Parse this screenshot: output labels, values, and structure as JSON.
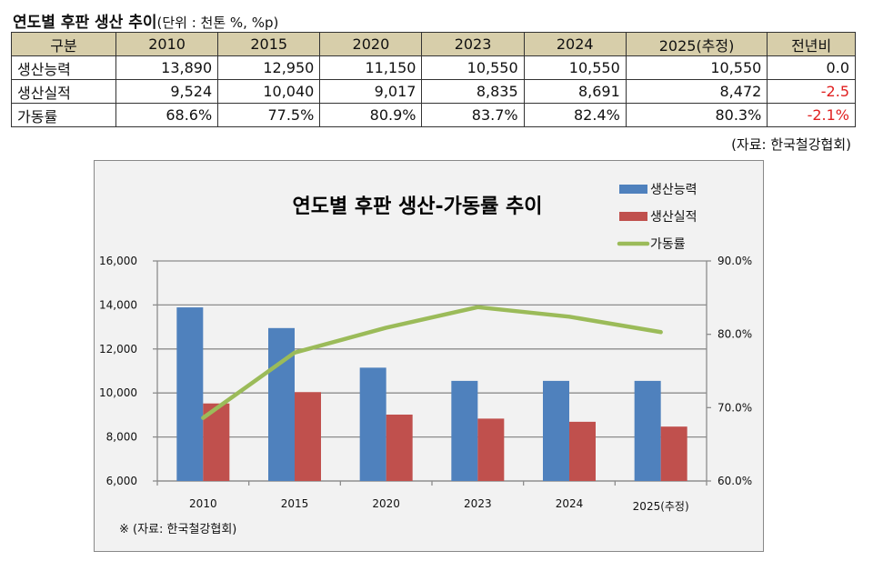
{
  "heading": {
    "title": "연도별 후판 생산 추이",
    "unit": "(단위 : 천톤 %, %p)"
  },
  "table": {
    "headers": [
      "구분",
      "2010",
      "2015",
      "2020",
      "2023",
      "2024",
      "2025(추정)",
      "전년비"
    ],
    "rows": [
      {
        "label": "생산능력",
        "values": [
          "13,890",
          "12,950",
          "11,150",
          "10,550",
          "10,550",
          "10,550"
        ],
        "change": "0.0",
        "change_negative": false
      },
      {
        "label": "생산실적",
        "values": [
          "9,524",
          "10,040",
          "9,017",
          "8,835",
          "8,691",
          "8,472"
        ],
        "change": "-2.5",
        "change_negative": true
      },
      {
        "label": "가동률",
        "values": [
          "68.6%",
          "77.5%",
          "80.9%",
          "83.7%",
          "82.4%",
          "80.3%"
        ],
        "change": "-2.1%",
        "change_negative": true
      }
    ],
    "source": "(자료: 한국철강협회)"
  },
  "colors": {
    "header_bg": "#d7ceaa",
    "capacity": "#4f81bd",
    "production": "#c0504d",
    "utilization": "#9bbb59",
    "negative": "#e02020"
  },
  "chart_data": {
    "type": "bar",
    "title": "연도별 후판 생산-가동률 추이",
    "categories": [
      "2010",
      "2015",
      "2020",
      "2023",
      "2024",
      "2025(추정)"
    ],
    "series": [
      {
        "name": "생산능력",
        "type": "bar",
        "axis": "left",
        "values": [
          13890,
          12950,
          11150,
          10550,
          10550,
          10550
        ]
      },
      {
        "name": "생산실적",
        "type": "bar",
        "axis": "left",
        "values": [
          9524,
          10040,
          9017,
          8835,
          8691,
          8472
        ]
      },
      {
        "name": "가동률",
        "type": "line",
        "axis": "right",
        "values": [
          68.6,
          77.5,
          80.9,
          83.7,
          82.4,
          80.3
        ]
      }
    ],
    "y_left": {
      "min": 6000,
      "max": 16000,
      "step": 2000,
      "ticks": [
        "6,000",
        "8,000",
        "10,000",
        "12,000",
        "14,000",
        "16,000"
      ]
    },
    "y_right": {
      "min": 60,
      "max": 90,
      "step": 10,
      "ticks": [
        "60.0%",
        "70.0%",
        "80.0%",
        "90.0%"
      ]
    },
    "grid": true,
    "legend": "top-right",
    "note": "※ (자료: 한국철강협회)"
  }
}
